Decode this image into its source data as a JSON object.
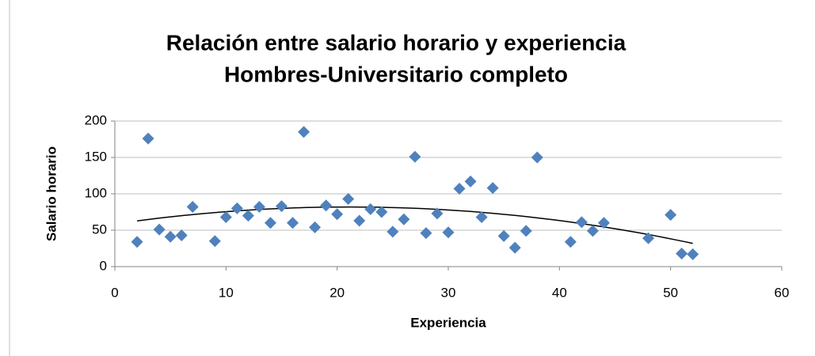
{
  "chart_data": {
    "type": "scatter",
    "title": [
      "Relación entre salario horario y experiencia",
      "Hombres-Universitario completo"
    ],
    "x_label": "Experiencia",
    "y_label": "Salario horario",
    "series": [
      {
        "color": "#4f81bd",
        "x": [
          2,
          3,
          4,
          5,
          6,
          7,
          9,
          10,
          11,
          12,
          13,
          14,
          15,
          16,
          17,
          18,
          19,
          20,
          21,
          22,
          23,
          24,
          25,
          26,
          27,
          28,
          29,
          30,
          31,
          32,
          33,
          34,
          35,
          36,
          37,
          38,
          41,
          42,
          43,
          44,
          48,
          50,
          51,
          52
        ],
        "values": [
          34,
          176,
          51,
          41,
          43,
          82,
          35,
          68,
          80,
          70,
          82,
          60,
          83,
          60,
          185,
          54,
          84,
          72,
          93,
          63,
          79,
          75,
          48,
          65,
          151,
          46,
          73,
          47,
          107,
          117,
          68,
          108,
          42,
          26,
          49,
          150,
          34,
          61,
          49,
          60,
          39,
          71,
          18,
          17
        ]
      }
    ],
    "trendline": "quadratic",
    "xlim": [
      0,
      60
    ],
    "xticks": [
      0,
      10,
      20,
      30,
      40,
      50,
      60
    ],
    "ylim": [
      0,
      200
    ],
    "yticks": [
      0,
      50,
      100,
      150,
      200
    ],
    "grid": true
  }
}
